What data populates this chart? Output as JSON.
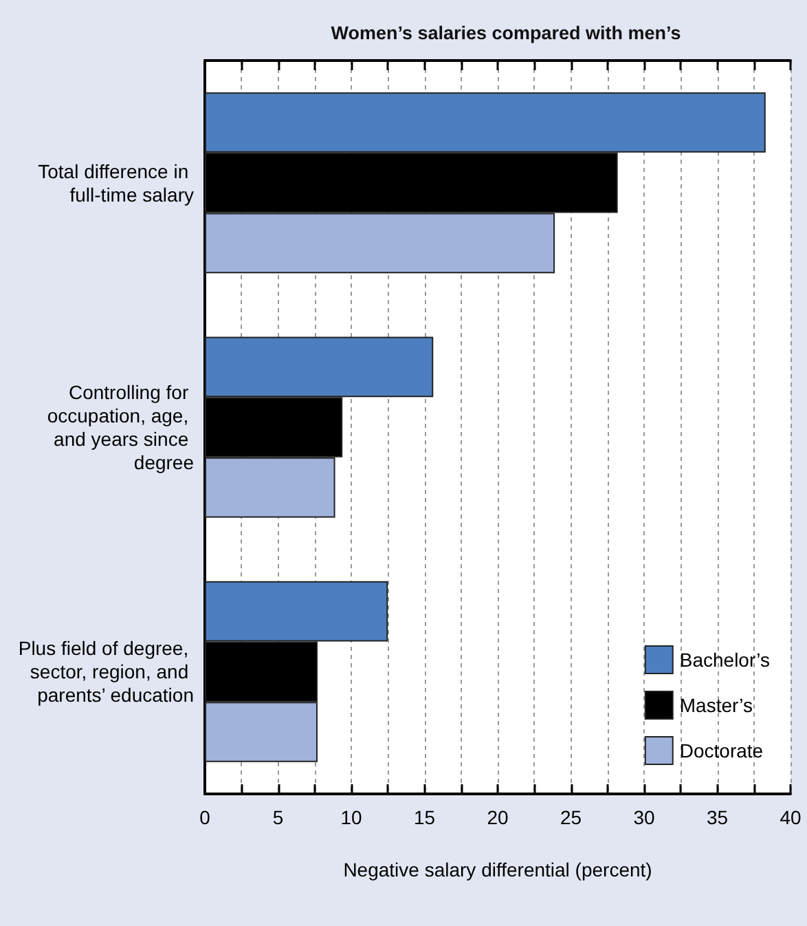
{
  "chart_data": {
    "type": "bar",
    "orientation": "horizontal",
    "title": "Women’s salaries compared with men’s",
    "xlabel": "Negative salary differential (percent)",
    "categories": [
      "Total difference in full-time salary",
      "Controlling for occupation, age, and years since degree",
      "Plus field of degree, sector, region, and parents’ education"
    ],
    "series": [
      {
        "name": "Bachelor’s",
        "color": "#4d7fc0",
        "values": [
          38.3,
          15.6,
          12.5
        ]
      },
      {
        "name": "Master’s",
        "color": "#000000",
        "values": [
          28.2,
          9.4,
          7.7
        ]
      },
      {
        "name": "Doctorate",
        "color": "#a0b3dc",
        "values": [
          23.9,
          8.9,
          7.7
        ]
      }
    ],
    "xlim": [
      0,
      40
    ],
    "xticks": [
      0,
      {
        "value": 2.5,
        "label": null
      },
      5,
      {
        "value": 7.5,
        "label": null
      },
      10,
      {
        "value": 12.5,
        "label": null
      },
      15,
      {
        "value": 17.5,
        "label": null
      },
      20,
      {
        "value": 22.5,
        "label": null
      },
      25,
      {
        "value": 27.5,
        "label": null
      },
      30,
      {
        "value": 32.5,
        "label": null
      },
      35,
      {
        "value": 37.5,
        "label": null
      },
      40
    ],
    "grid": "x",
    "legend": "bottom right"
  }
}
